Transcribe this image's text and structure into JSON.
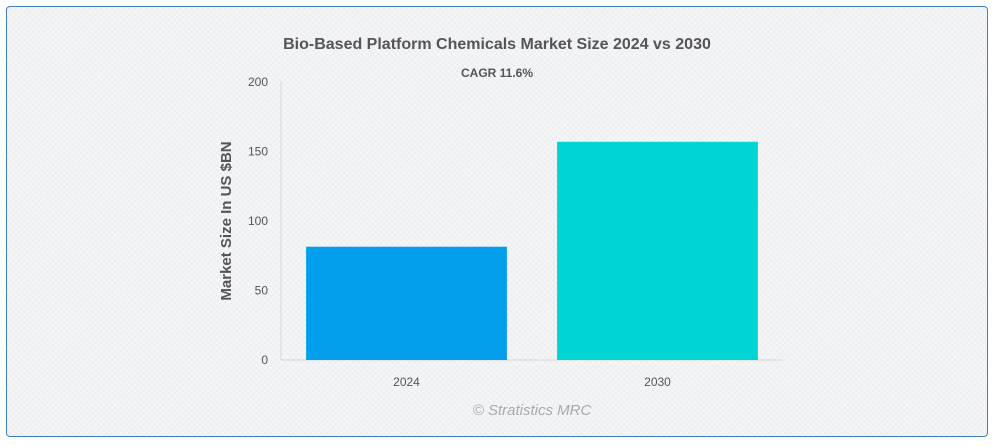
{
  "chart_data": {
    "type": "bar",
    "title": "Bio-Based Platform Chemicals Market Size 2024 vs 2030",
    "subtitle": "CAGR 11.6%",
    "xlabel": "",
    "ylabel": "Market Size In US $BN",
    "categories": [
      "2024",
      "2030"
    ],
    "values": [
      81.5,
      157
    ],
    "colors": [
      "#039fed",
      "#00d4d4"
    ],
    "ylim": [
      0,
      200
    ],
    "yticks": [
      0,
      50,
      100,
      150,
      200
    ],
    "grid": false,
    "legend": "none"
  },
  "credit": "© Stratistics MRC"
}
